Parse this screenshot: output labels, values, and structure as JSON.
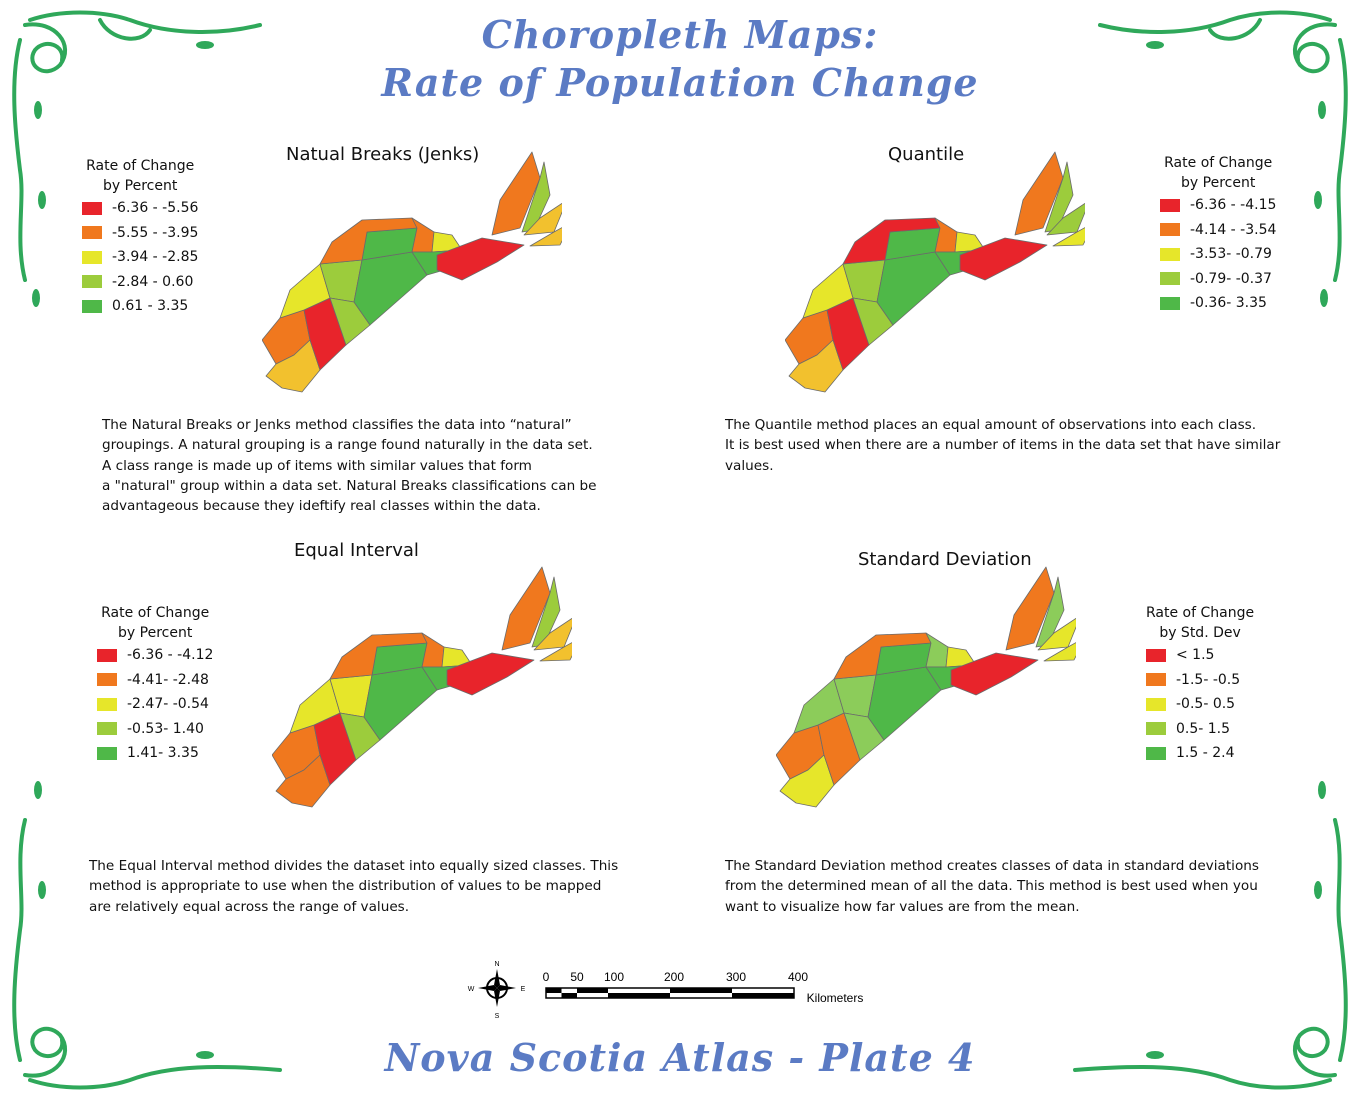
{
  "header": {
    "line1": "Choropleth Maps:",
    "line2": "Rate of Population Change"
  },
  "footer": "Nova Scotia Atlas - Plate 4",
  "colors": {
    "title_blue": "#5b7bc4",
    "border_green": "#2fa85a",
    "red": "#e8242b",
    "orange": "#f0781e",
    "yellow": "#e6e62a",
    "light_green": "#9ccc3c",
    "green": "#4fb848",
    "sage": "#8ccc5a",
    "ochre": "#f2c12e"
  },
  "maps": [
    {
      "id": "jenks",
      "title": "Natual Breaks (Jenks)",
      "legend_title_lines": [
        "Rate of Change",
        "by Percent"
      ],
      "classes": [
        {
          "label": "-6.36 - -5.56",
          "color": "#e8242b"
        },
        {
          "label": "-5.55 - -3.95",
          "color": "#f0781e"
        },
        {
          "label": "-3.94 - -2.85",
          "color": "#e6e62a"
        },
        {
          "label": "-2.84  - 0.60",
          "color": "#9ccc3c"
        },
        {
          "label": "0.61 -    3.35",
          "color": "#4fb848"
        }
      ],
      "description_lines": [
        "The Natural Breaks or Jenks method classifies the data into “natural”",
        "groupings. A natural grouping is a range found naturally in the data set.",
        "A class range is made up of items with similar values that form",
        "a \"natural\" group within a data set. Natural Breaks classifications can be",
        "advantageous because they ideftify real classes within the data."
      ],
      "region_fills": [
        "#f0781e",
        "#f2c12e",
        "#e8242b",
        "#e6e62a",
        "#9ccc3c",
        "#9ccc3c",
        "#4fb848",
        "#4fb848",
        "#f0781e",
        "#f0781e",
        "#e6e62a",
        "#4fb848",
        "#e8242b",
        "#f0781e",
        "#9ccc3c",
        "#f2c12e",
        "#f2c12e"
      ]
    },
    {
      "id": "quantile",
      "title": "Quantile",
      "legend_title_lines": [
        "Rate of Change",
        "by Percent"
      ],
      "classes": [
        {
          "label": "-6.36 - -4.15",
          "color": "#e8242b"
        },
        {
          "label": "-4.14 - -3.54",
          "color": "#f0781e"
        },
        {
          "label": "-3.53- -0.79",
          "color": "#e6e62a"
        },
        {
          "label": "-0.79- -0.37",
          "color": "#9ccc3c"
        },
        {
          "label": "-0.36- 3.35",
          "color": "#4fb848"
        }
      ],
      "description_lines": [
        "The Quantile method places an equal amount of observations into each class.",
        "It is best used when there are a number of items in the data set that have similar",
        "values."
      ],
      "region_fills": [
        "#f0781e",
        "#f2c12e",
        "#e8242b",
        "#e6e62a",
        "#9ccc3c",
        "#9ccc3c",
        "#4fb848",
        "#4fb848",
        "#e8242b",
        "#f0781e",
        "#e6e62a",
        "#4fb848",
        "#e8242b",
        "#f0781e",
        "#9ccc3c",
        "#9ccc3c",
        "#e6e62a"
      ]
    },
    {
      "id": "equal",
      "title": "Equal Interval",
      "legend_title_lines": [
        "Rate of Change",
        "by Percent"
      ],
      "classes": [
        {
          "label": "-6.36 - -4.12",
          "color": "#e8242b"
        },
        {
          "label": "-4.41- -2.48",
          "color": "#f0781e"
        },
        {
          "label": "-2.47- -0.54",
          "color": "#e6e62a"
        },
        {
          "label": "-0.53- 1.40",
          "color": "#9ccc3c"
        },
        {
          "label": "1.41- 3.35",
          "color": "#4fb848"
        }
      ],
      "description_lines": [
        "The Equal Interval method divides the dataset into equally sized classes. This",
        "method is appropriate to use when the distribution of values to be mapped",
        "are relatively equal across the range of values."
      ],
      "region_fills": [
        "#f0781e",
        "#f0781e",
        "#e8242b",
        "#e6e62a",
        "#e6e62a",
        "#9ccc3c",
        "#4fb848",
        "#4fb848",
        "#f0781e",
        "#f0781e",
        "#e6e62a",
        "#4fb848",
        "#e8242b",
        "#f0781e",
        "#9ccc3c",
        "#f2c12e",
        "#f2c12e"
      ]
    },
    {
      "id": "stddev",
      "title": "Standard Deviation",
      "legend_title_lines": [
        "Rate of Change",
        "by Std. Dev"
      ],
      "classes": [
        {
          "label": "< 1.5",
          "color": "#e8242b"
        },
        {
          "label": "-1.5- -0.5",
          "color": "#f0781e"
        },
        {
          "label": "-0.5- 0.5",
          "color": "#e6e62a"
        },
        {
          "label": "0.5- 1.5",
          "color": "#9ccc3c"
        },
        {
          "label": "1.5 - 2.4",
          "color": "#4fb848"
        }
      ],
      "description_lines": [
        "The Standard Deviation method creates classes of data in standard deviations",
        "from the determined mean of all the data. This method is best used when you",
        "want to visualize how far values are from the mean."
      ],
      "region_fills": [
        "#f0781e",
        "#e6e62a",
        "#f0781e",
        "#8ccc5a",
        "#8ccc5a",
        "#8ccc5a",
        "#4fb848",
        "#4fb848",
        "#f0781e",
        "#8ccc5a",
        "#e6e62a",
        "#4fb848",
        "#e8242b",
        "#f0781e",
        "#8ccc5a",
        "#e6e62a",
        "#e6e62a"
      ]
    }
  ],
  "scale": {
    "ticks": [
      "0",
      "50",
      "100",
      "200",
      "300",
      "400"
    ],
    "unit": "Kilometers"
  },
  "compass": {
    "n": "N",
    "s": "S",
    "e": "E",
    "w": "W"
  }
}
